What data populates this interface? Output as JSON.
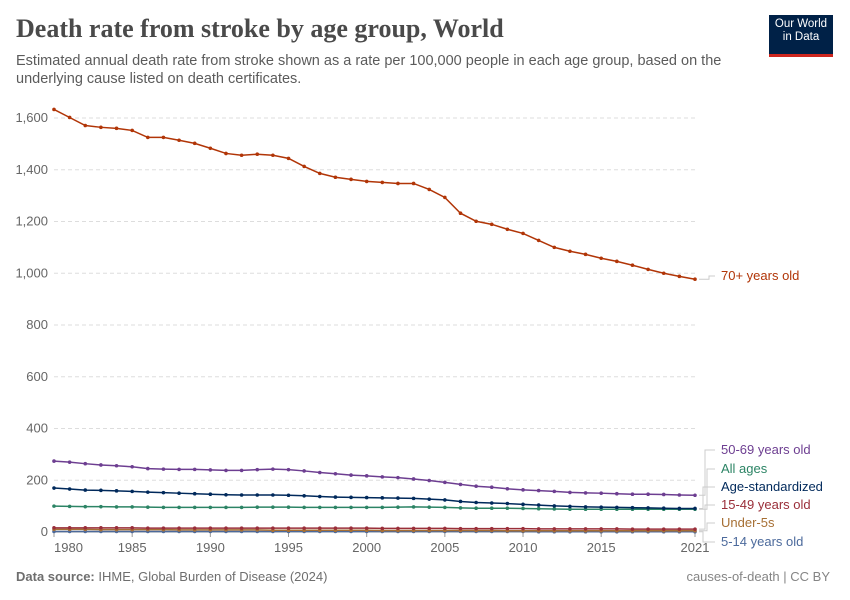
{
  "header": {
    "title": "Death rate from stroke by age group, World",
    "subtitle": "Estimated annual death rate from stroke shown as a rate per 100,000 people in each age group, based on the underlying cause listed on death certificates.",
    "logo": "Our World in Data"
  },
  "footer": {
    "source_label": "Data source:",
    "source": "IHME, Global Burden of Disease (2024)",
    "license": "causes-of-death | CC BY"
  },
  "chart_data": {
    "type": "line",
    "title": "Death rate from stroke by age group, World",
    "xlim": [
      1980,
      2021
    ],
    "ylim": [
      0,
      1600
    ],
    "x_ticks": [
      "1980",
      "1985",
      "1990",
      "1995",
      "2000",
      "2005",
      "2010",
      "2015",
      "2021"
    ],
    "y_ticks": [
      "0",
      "200",
      "400",
      "600",
      "800",
      "1,000",
      "1,200",
      "1,400",
      "1,600"
    ],
    "grid": "horizontal dashed",
    "legend": "right, inline labels",
    "x": [
      1980,
      1981,
      1982,
      1983,
      1984,
      1985,
      1986,
      1987,
      1988,
      1989,
      1990,
      1991,
      1992,
      1993,
      1994,
      1995,
      1996,
      1997,
      1998,
      1999,
      2000,
      2001,
      2002,
      2003,
      2004,
      2005,
      2006,
      2007,
      2008,
      2009,
      2010,
      2011,
      2012,
      2013,
      2014,
      2015,
      2016,
      2017,
      2018,
      2019,
      2020,
      2021
    ],
    "series": [
      {
        "name": "70+ years old",
        "color": "#b13507",
        "values": [
          1633,
          1602,
          1571,
          1564,
          1560,
          1552,
          1525,
          1525,
          1514,
          1502,
          1483,
          1463,
          1456,
          1460,
          1456,
          1444,
          1413,
          1386,
          1371,
          1363,
          1355,
          1351,
          1347,
          1347,
          1324,
          1293,
          1232,
          1201,
          1189,
          1170,
          1154,
          1127,
          1100,
          1085,
          1073,
          1058,
          1046,
          1031,
          1015,
          1000,
          988,
          977
        ]
      },
      {
        "name": "50-69 years old",
        "color": "#6d3e91",
        "values": [
          274,
          270,
          264,
          259,
          256,
          252,
          245,
          243,
          242,
          242,
          240,
          238,
          238,
          241,
          243,
          241,
          236,
          230,
          225,
          220,
          217,
          213,
          210,
          205,
          199,
          192,
          184,
          177,
          173,
          167,
          163,
          160,
          157,
          153,
          151,
          150,
          148,
          146,
          146,
          145,
          143,
          142
        ]
      },
      {
        "name": "All ages",
        "color": "#2c8465",
        "values": [
          100,
          99,
          98,
          98,
          97,
          97,
          96,
          95,
          95,
          95,
          95,
          95,
          95,
          96,
          96,
          96,
          95,
          95,
          95,
          95,
          95,
          95,
          96,
          97,
          96,
          95,
          93,
          92,
          92,
          92,
          91,
          90,
          89,
          88,
          88,
          88,
          88,
          88,
          88,
          88,
          88,
          88
        ]
      },
      {
        "name": "Age-standardized",
        "color": "#00295b",
        "values": [
          170,
          166,
          162,
          161,
          159,
          157,
          154,
          152,
          150,
          148,
          146,
          144,
          143,
          143,
          143,
          142,
          140,
          137,
          135,
          134,
          133,
          132,
          131,
          130,
          127,
          124,
          118,
          114,
          112,
          110,
          107,
          104,
          101,
          99,
          97,
          96,
          95,
          94,
          93,
          92,
          91,
          91
        ]
      },
      {
        "name": "15-49 years old",
        "color": "#9a2e39",
        "values": [
          16,
          16,
          16,
          16,
          16,
          16,
          15,
          15,
          15,
          15,
          15,
          15,
          15,
          15,
          15,
          15,
          15,
          15,
          15,
          15,
          15,
          14,
          14,
          14,
          14,
          14,
          13,
          13,
          13,
          13,
          13,
          12,
          12,
          12,
          12,
          12,
          12,
          11,
          11,
          11,
          11,
          11
        ]
      },
      {
        "name": "Under-5s",
        "color": "#a66f34",
        "values": [
          10,
          10,
          10,
          9,
          9,
          9,
          9,
          9,
          8,
          8,
          8,
          8,
          8,
          8,
          7,
          7,
          7,
          7,
          7,
          7,
          7,
          6,
          6,
          6,
          6,
          6,
          6,
          6,
          6,
          5,
          5,
          5,
          5,
          5,
          5,
          5,
          5,
          5,
          5,
          5,
          5,
          5
        ]
      },
      {
        "name": "5-14 years old",
        "color": "#4c6a9c",
        "values": [
          2,
          2,
          2,
          2,
          2,
          2,
          2,
          2,
          2,
          2,
          2,
          2,
          2,
          2,
          2,
          2,
          2,
          2,
          2,
          2,
          2,
          2,
          2,
          2,
          2,
          2,
          2,
          2,
          2,
          2,
          2,
          1,
          1,
          1,
          1,
          1,
          1,
          1,
          1,
          1,
          1,
          1
        ]
      }
    ]
  }
}
